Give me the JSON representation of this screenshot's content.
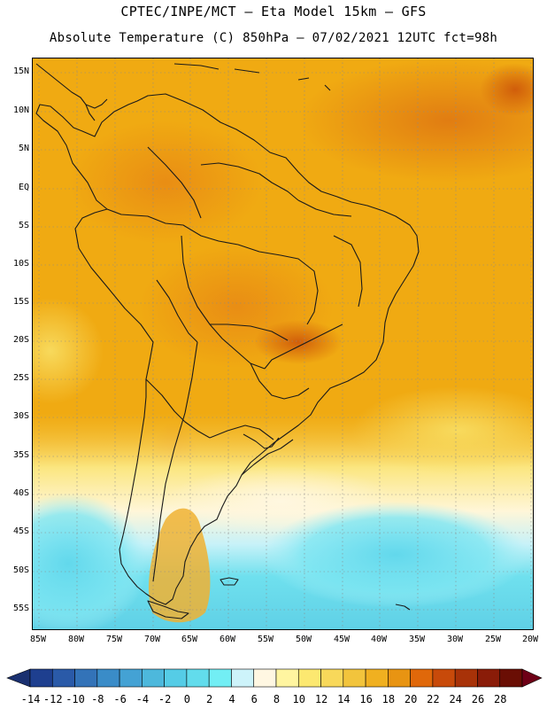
{
  "title_line1": "CPTEC/INPE/MCT  –   Eta Model 15km  –  GFS",
  "title_line2": "Absolute Temperature (C) 850hPa  –  07/02/2021 12UTC fct=98h",
  "lat_labels": [
    "15N",
    "10N",
    "5N",
    "EQ",
    "5S",
    "10S",
    "15S",
    "20S",
    "25S",
    "30S",
    "35S",
    "40S",
    "45S",
    "50S",
    "55S"
  ],
  "lon_labels": [
    "85W",
    "80W",
    "75W",
    "70W",
    "65W",
    "60W",
    "55W",
    "50W",
    "45W",
    "40W",
    "35W",
    "30W",
    "25W",
    "20W"
  ],
  "colorbar": {
    "labels": [
      "-14",
      "-12",
      "-10",
      "-8",
      "-6",
      "-4",
      "-2",
      "0",
      "2",
      "4",
      "6",
      "8",
      "10",
      "12",
      "14",
      "16",
      "18",
      "20",
      "22",
      "24",
      "26",
      "28"
    ],
    "colors": [
      "#1e3f8f",
      "#2a5aa8",
      "#3373b8",
      "#3a8cc8",
      "#44a2d4",
      "#4db8dc",
      "#55cce6",
      "#62dcec",
      "#72eef4",
      "#cdf3fa",
      "#fff7e2",
      "#fff5a0",
      "#fce870",
      "#f8d85a",
      "#f2c43c",
      "#f0b020",
      "#e89412",
      "#e0680a",
      "#c84a0a",
      "#a83208",
      "#8a1c08",
      "#6a0e04"
    ],
    "low_arrow_color": "#1a3070",
    "high_arrow_color": "#6e0016"
  },
  "palette": {
    "background": "#f0aa12",
    "land_border": "#1a1a1a",
    "grid": "#888888"
  }
}
